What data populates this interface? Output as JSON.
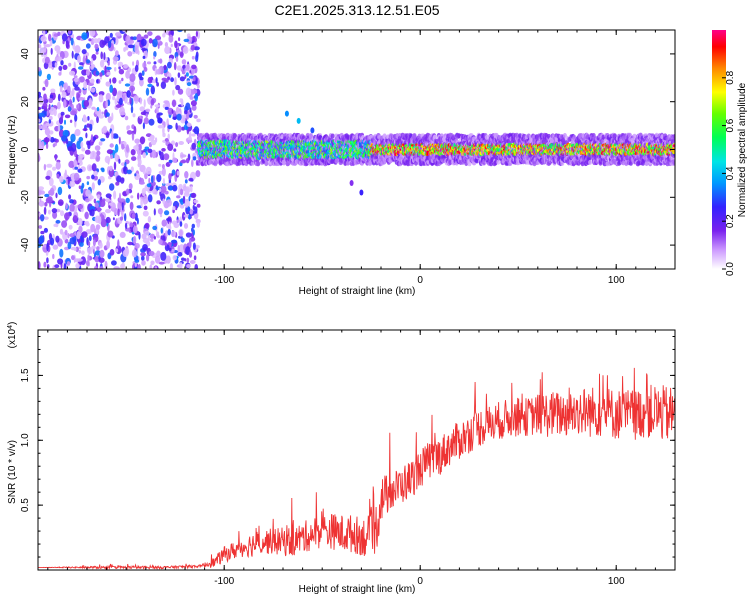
{
  "title": "C2E1.2025.313.12.51.E05",
  "chart_data": [
    {
      "type": "heatmap",
      "xlabel": "Height of straight line (km)",
      "ylabel": "Frequency (Hz)",
      "xlim": [
        -195,
        130
      ],
      "ylim": [
        -50,
        50
      ],
      "xticks": [
        "-100",
        "0",
        "100"
      ],
      "yticks": [
        "-40",
        "-20",
        "0",
        "20",
        "40"
      ],
      "colorbar": {
        "label": "Normalized spectral amplitude",
        "range": [
          0,
          1
        ],
        "ticks": [
          "0.0",
          "0.2",
          "0.4",
          "0.6",
          "0.8"
        ]
      },
      "description_regions": [
        {
          "x_range": [
            -195,
            -113
          ],
          "pattern": "broadband noise",
          "amplitude": [
            0.05,
            0.35
          ]
        },
        {
          "x_range": [
            -113,
            -25
          ],
          "pattern": "narrow band near 0 Hz",
          "amplitude": [
            0.3,
            0.7
          ]
        },
        {
          "x_range": [
            -25,
            130
          ],
          "pattern": "narrow band near 0 Hz",
          "amplitude": [
            0.5,
            1.0
          ]
        }
      ]
    },
    {
      "type": "line",
      "xlabel": "Height of straight line (km)",
      "ylabel": "SNR (10 * v/v)",
      "y_multiplier": "(x10^4)",
      "xlim": [
        -195,
        130
      ],
      "ylim": [
        0,
        1.85
      ],
      "xticks": [
        "-100",
        "0",
        "100"
      ],
      "yticks": [
        "0.5",
        "1.0",
        "1.5"
      ],
      "series": [
        {
          "name": "SNR",
          "color": "#ee3333",
          "x": [
            -195,
            -160,
            -130,
            -112,
            -105,
            -100,
            -95,
            -90,
            -85,
            -80,
            -75,
            -70,
            -65,
            -60,
            -55,
            -50,
            -45,
            -40,
            -35,
            -30,
            -25,
            -22,
            -20,
            -15,
            -10,
            -5,
            0,
            5,
            10,
            15,
            20,
            25,
            30,
            35,
            40,
            45,
            50,
            55,
            60,
            65,
            70,
            75,
            80,
            85,
            90,
            95,
            100,
            105,
            110,
            115,
            120,
            125,
            130
          ],
          "y": [
            0.02,
            0.02,
            0.02,
            0.03,
            0.06,
            0.12,
            0.15,
            0.18,
            0.2,
            0.22,
            0.22,
            0.22,
            0.22,
            0.25,
            0.28,
            0.3,
            0.3,
            0.28,
            0.28,
            0.26,
            0.25,
            0.35,
            0.55,
            0.6,
            0.65,
            0.7,
            0.78,
            0.85,
            0.88,
            0.95,
            1.0,
            1.05,
            1.1,
            1.12,
            1.15,
            1.17,
            1.18,
            1.18,
            1.2,
            1.2,
            1.2,
            1.2,
            1.22,
            1.22,
            1.22,
            1.22,
            1.2,
            1.2,
            1.2,
            1.22,
            1.22,
            1.2,
            1.2
          ],
          "noise": [
            0,
            0.01,
            0.01,
            0.01,
            0.04,
            0.06,
            0.07,
            0.08,
            0.1,
            0.1,
            0.1,
            0.11,
            0.12,
            0.12,
            0.13,
            0.13,
            0.14,
            0.15,
            0.15,
            0.15,
            0.18,
            0.2,
            0.18,
            0.15,
            0.15,
            0.15,
            0.15,
            0.15,
            0.15,
            0.15,
            0.15,
            0.15,
            0.15,
            0.15,
            0.15,
            0.15,
            0.15,
            0.15,
            0.16,
            0.18,
            0.18,
            0.18,
            0.18,
            0.2,
            0.2,
            0.2,
            0.2,
            0.2,
            0.2,
            0.2,
            0.22,
            0.22,
            0.22
          ]
        }
      ]
    }
  ]
}
